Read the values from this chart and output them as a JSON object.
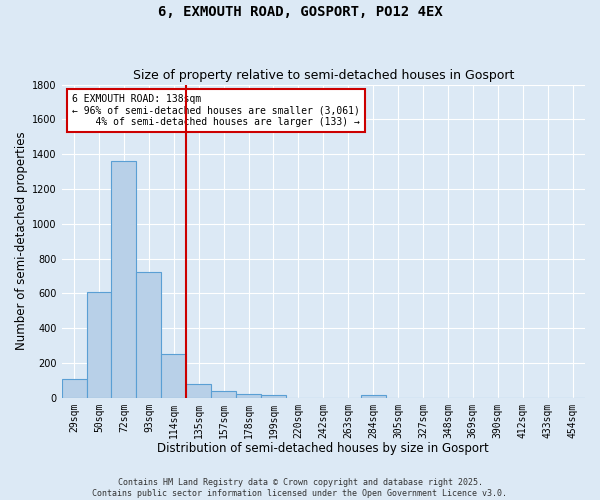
{
  "title_line1": "6, EXMOUTH ROAD, GOSPORT, PO12 4EX",
  "title_line2": "Size of property relative to semi-detached houses in Gosport",
  "xlabel": "Distribution of semi-detached houses by size in Gosport",
  "ylabel": "Number of semi-detached properties",
  "categories": [
    "29sqm",
    "50sqm",
    "72sqm",
    "93sqm",
    "114sqm",
    "135sqm",
    "157sqm",
    "178sqm",
    "199sqm",
    "220sqm",
    "242sqm",
    "263sqm",
    "284sqm",
    "305sqm",
    "327sqm",
    "348sqm",
    "369sqm",
    "390sqm",
    "412sqm",
    "433sqm",
    "454sqm"
  ],
  "values": [
    110,
    610,
    1360,
    725,
    253,
    80,
    38,
    22,
    14,
    0,
    0,
    0,
    15,
    0,
    0,
    0,
    0,
    0,
    0,
    0,
    0
  ],
  "bar_color": "#b8d0e8",
  "bar_edge_color": "#5a9fd4",
  "vline_x_idx": 4.5,
  "vline_color": "#cc0000",
  "annotation_line1": "6 EXMOUTH ROAD: 138sqm",
  "annotation_line2": "← 96% of semi-detached houses are smaller (3,061)",
  "annotation_line3": "    4% of semi-detached houses are larger (133) →",
  "annotation_box_color": "#cc0000",
  "ylim": [
    0,
    1800
  ],
  "yticks": [
    0,
    200,
    400,
    600,
    800,
    1000,
    1200,
    1400,
    1600,
    1800
  ],
  "footnote_line1": "Contains HM Land Registry data © Crown copyright and database right 2025.",
  "footnote_line2": "Contains public sector information licensed under the Open Government Licence v3.0.",
  "bg_color": "#dce9f5",
  "title_fontsize": 10,
  "subtitle_fontsize": 9,
  "axis_label_fontsize": 8.5,
  "tick_fontsize": 7,
  "annotation_fontsize": 7,
  "footnote_fontsize": 6
}
